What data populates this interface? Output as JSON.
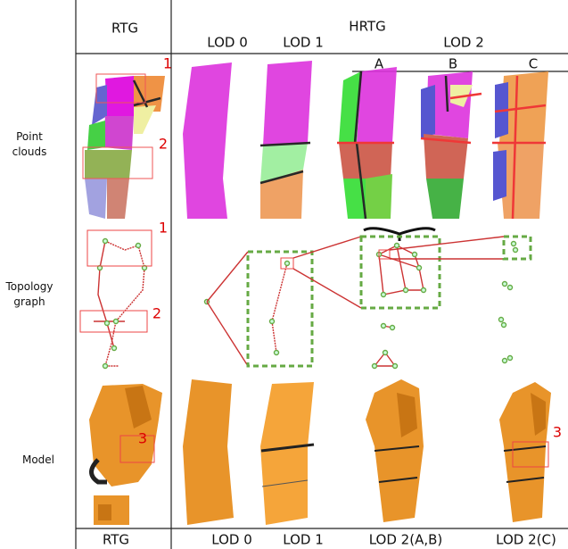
{
  "header": {
    "rtg": "RTG",
    "hrtg": "HRTG",
    "lod0": "LOD 0",
    "lod1": "LOD 1",
    "lod2": "LOD 2",
    "a": "A",
    "b": "B",
    "c": "C"
  },
  "rows": [
    {
      "label": "Point clouds",
      "markers": [
        "1",
        "2"
      ]
    },
    {
      "label": "Topology graph",
      "markers": [
        "1",
        "2"
      ]
    },
    {
      "label": "Model",
      "markers": [
        "3",
        "3"
      ]
    }
  ],
  "footer": [
    "RTG",
    "LOD 0",
    "LOD 1",
    "LOD 2(A,B)",
    "LOD 2(C)"
  ]
}
